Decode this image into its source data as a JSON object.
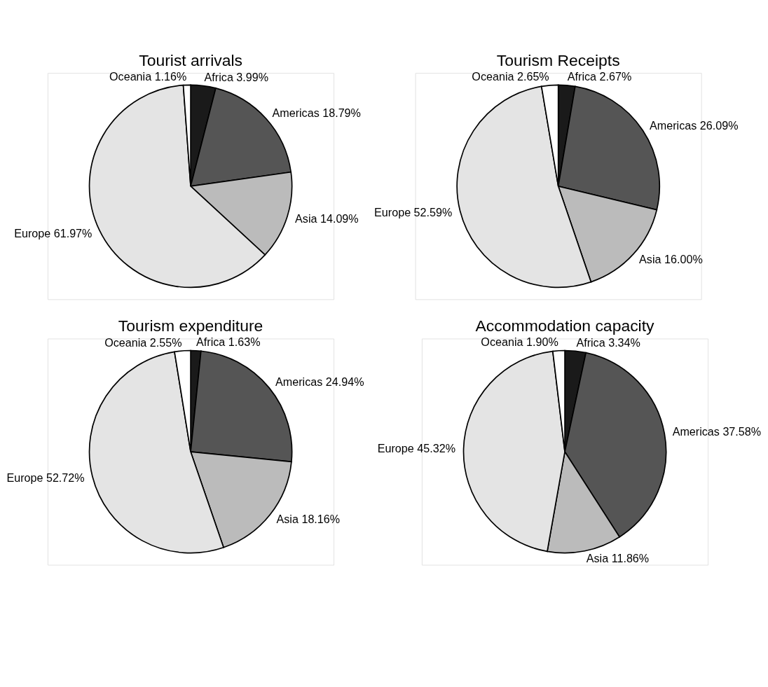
{
  "chart_data": [
    {
      "type": "pie",
      "title": "Tourist  arrivals",
      "categories": [
        "Africa",
        "Americas",
        "Asia",
        "Europe",
        "Oceania"
      ],
      "values": [
        3.99,
        18.79,
        14.09,
        61.97,
        1.16
      ],
      "value_labels": [
        "3.99%",
        "18.79%",
        "14.09%",
        "61.97%",
        "1.16%"
      ],
      "colors": [
        "#1a1a1a",
        "#555555",
        "#bbbbbb",
        "#e4e4e4",
        "#ffffff"
      ],
      "legend": false
    },
    {
      "type": "pie",
      "title": "Tourism  Receipts",
      "categories": [
        "Africa",
        "Americas",
        "Asia",
        "Europe",
        "Oceania"
      ],
      "values": [
        2.67,
        26.09,
        16.0,
        52.59,
        2.65
      ],
      "value_labels": [
        "2.67%",
        "26.09%",
        "16.00%",
        "52.59%",
        "2.65%"
      ],
      "colors": [
        "#1a1a1a",
        "#555555",
        "#bbbbbb",
        "#e4e4e4",
        "#ffffff"
      ],
      "legend": false
    },
    {
      "type": "pie",
      "title": "Tourism  expenditure",
      "categories": [
        "Africa",
        "Americas",
        "Asia",
        "Europe",
        "Oceania"
      ],
      "values": [
        1.63,
        24.94,
        18.16,
        52.72,
        2.55
      ],
      "value_labels": [
        "1.63%",
        "24.94%",
        "18.16%",
        "52.72%",
        "2.55%"
      ],
      "colors": [
        "#1a1a1a",
        "#555555",
        "#bbbbbb",
        "#e4e4e4",
        "#ffffff"
      ],
      "legend": false
    },
    {
      "type": "pie",
      "title": "Accommodation  capacity",
      "categories": [
        "Africa",
        "Americas",
        "Asia",
        "Europe",
        "Oceania"
      ],
      "values": [
        3.34,
        37.58,
        11.86,
        45.32,
        1.9
      ],
      "value_labels": [
        "3.34%",
        "37.58%",
        "11.86%",
        "45.32%",
        "1.90%"
      ],
      "colors": [
        "#1a1a1a",
        "#555555",
        "#bbbbbb",
        "#e4e4e4",
        "#ffffff"
      ],
      "legend": false
    }
  ]
}
